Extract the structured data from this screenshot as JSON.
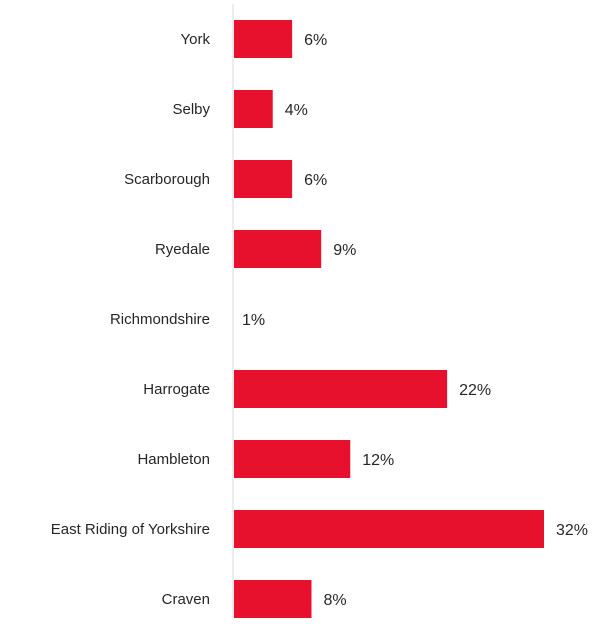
{
  "chart_data": {
    "type": "bar",
    "orientation": "horizontal",
    "categories": [
      "York",
      "Selby",
      "Scarborough",
      "Ryedale",
      "Richmondshire",
      "Harrogate",
      "Hambleton",
      "East Riding of Yorkshire",
      "Craven"
    ],
    "values": [
      6,
      4,
      6,
      9,
      1,
      22,
      12,
      32,
      8
    ],
    "value_labels": [
      "6%",
      "4%",
      "6%",
      "9%",
      "1%",
      "22%",
      "12%",
      "32%",
      "8%"
    ],
    "unit": "%",
    "title": "",
    "xlabel": "",
    "ylabel": "",
    "xlim": [
      0,
      32
    ],
    "grid": false,
    "legend": "none",
    "bar_color": "#e8112d",
    "axis_color": "#d9d9d9",
    "label_color": "#262626"
  }
}
